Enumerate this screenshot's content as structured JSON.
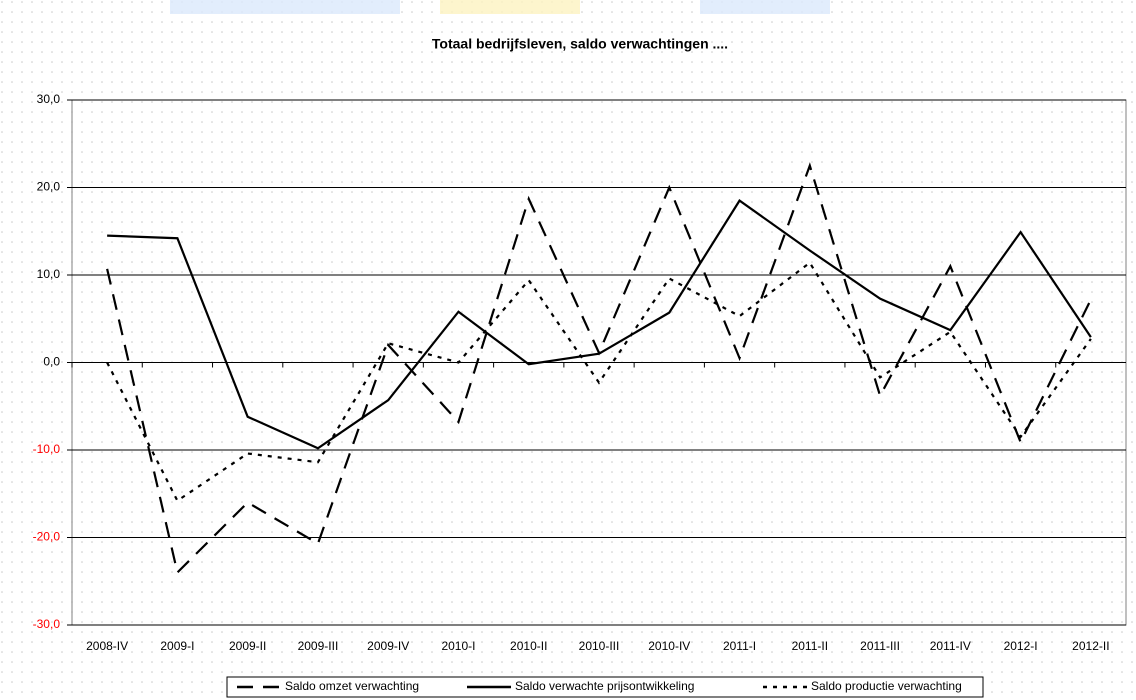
{
  "chart_data": {
    "type": "line",
    "title": "Totaal bedrijfsleven, saldo verwachtingen ....",
    "categories": [
      "2008-IV",
      "2009-I",
      "2009-II",
      "2009-III",
      "2009-IV",
      "2010-I",
      "2010-II",
      "2010-III",
      "2010-IV",
      "2011-I",
      "2011-II",
      "2011-III",
      "2011-IV",
      "2012-I",
      "2012-II"
    ],
    "series": [
      {
        "name": "Saldo omzet verwachting",
        "color": "#000000",
        "style": "dashed",
        "values": [
          10.7,
          -24.0,
          -16.0,
          -20.7,
          2.0,
          -6.8,
          18.7,
          1.1,
          20.0,
          0.5,
          22.5,
          -3.8,
          11.0,
          -9.1,
          7.2
        ]
      },
      {
        "name": "Saldo verwachte prijsontwikkeling",
        "color": "#000000",
        "style": "solid",
        "values": [
          14.5,
          14.2,
          -6.2,
          -9.8,
          -4.3,
          5.8,
          -0.2,
          1.0,
          5.7,
          18.5,
          12.8,
          7.3,
          3.7,
          14.9,
          2.9
        ]
      },
      {
        "name": "Saldo productie verwachting",
        "color": "#000000",
        "style": "dotted",
        "values": [
          0.0,
          -15.8,
          -10.4,
          -11.4,
          2.2,
          0.0,
          9.4,
          -2.3,
          9.6,
          5.3,
          11.4,
          -1.7,
          3.5,
          -8.5,
          2.7
        ]
      }
    ],
    "ylim": [
      -30,
      30
    ],
    "yticks": [
      {
        "value": -30,
        "label": "-30,0"
      },
      {
        "value": -20,
        "label": "-20,0"
      },
      {
        "value": -10,
        "label": "-10,0"
      },
      {
        "value": 0,
        "label": "0,0"
      },
      {
        "value": 10,
        "label": "10,0"
      },
      {
        "value": 20,
        "label": "20,0"
      },
      {
        "value": 30,
        "label": "30,0"
      }
    ],
    "grid": true,
    "negative_tick_color": "#ff0000",
    "legend": "bottom"
  }
}
